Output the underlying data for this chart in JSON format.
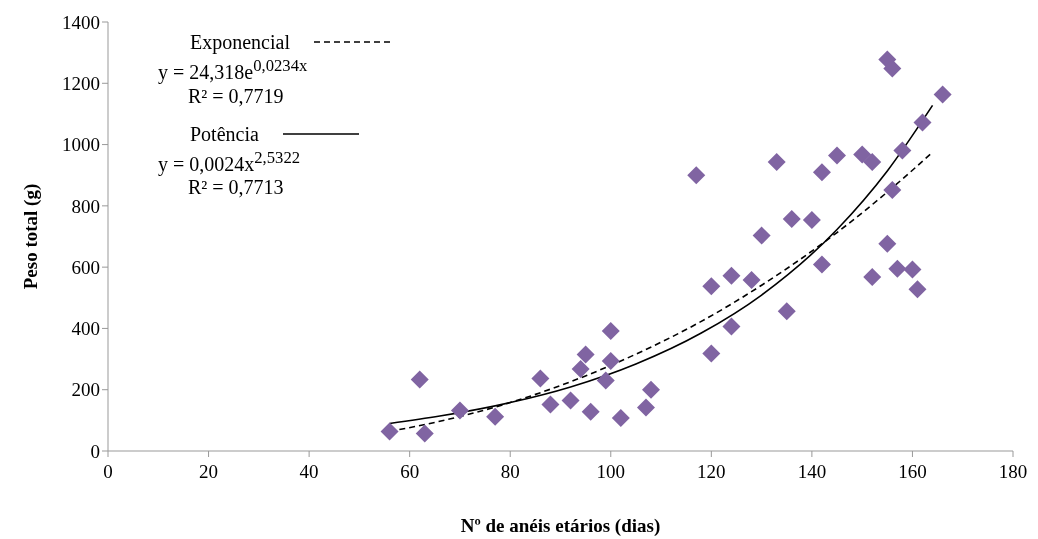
{
  "chart_data": {
    "type": "scatter",
    "xlabel": "Nº de anéis etários (dias)",
    "ylabel": "Peso total (g)",
    "xlim": [
      0,
      180
    ],
    "xticks": [
      0,
      20,
      40,
      60,
      80,
      100,
      120,
      140,
      160,
      180
    ],
    "ylim": [
      0,
      1400
    ],
    "yticks": [
      0,
      200,
      400,
      600,
      800,
      1000,
      1200,
      1400
    ],
    "grid": false,
    "legend": "top left",
    "marker": "diamond",
    "annotations": [
      "y = 24,318e$^{0,0234x}$",
      "R² = 0,7719",
      "y = 0,0024x$^{2,5322}$",
      "R² = 0,7713"
    ],
    "series": [
      {
        "color": "#8064a2",
        "x": [
          56,
          62,
          63,
          70,
          77,
          86,
          88,
          92,
          94,
          95,
          96,
          99,
          100,
          100,
          102,
          107,
          108,
          117,
          120,
          120,
          124,
          124,
          128,
          130,
          133,
          135,
          136,
          140,
          142,
          142,
          145,
          150,
          152,
          152,
          155,
          155,
          156,
          156,
          157,
          158,
          160,
          161,
          162,
          166
        ],
        "values": [
          64,
          233,
          57,
          132,
          112,
          237,
          152,
          165,
          268,
          315,
          128,
          230,
          294,
          392,
          108,
          142,
          200,
          900,
          538,
          318,
          572,
          406,
          558,
          703,
          943,
          456,
          757,
          754,
          910,
          609,
          964,
          968,
          943,
          568,
          1278,
          676,
          1248,
          852,
          595,
          981,
          592,
          528,
          1072,
          1163
        ]
      },
      {
        "type": "line",
        "name": "Exponencial",
        "color": "#000000",
        "line_style": "dashed",
        "marker": "none",
        "x": [
          56,
          66,
          80,
          92,
          105,
          118,
          130,
          145,
          155,
          164
        ],
        "values": [
          64,
          97,
          158,
          226,
          316,
          423,
          541,
          713,
          845,
          975
        ]
      },
      {
        "type": "line",
        "name": "Potência",
        "color": "#000000",
        "line_style": "solid",
        "marker": "none",
        "x": [
          56,
          66,
          80,
          92,
          105,
          118,
          130,
          145,
          155,
          164
        ],
        "values": [
          90,
          114,
          158,
          209,
          284,
          385,
          509,
          723,
          914,
          1128
        ]
      }
    ]
  }
}
